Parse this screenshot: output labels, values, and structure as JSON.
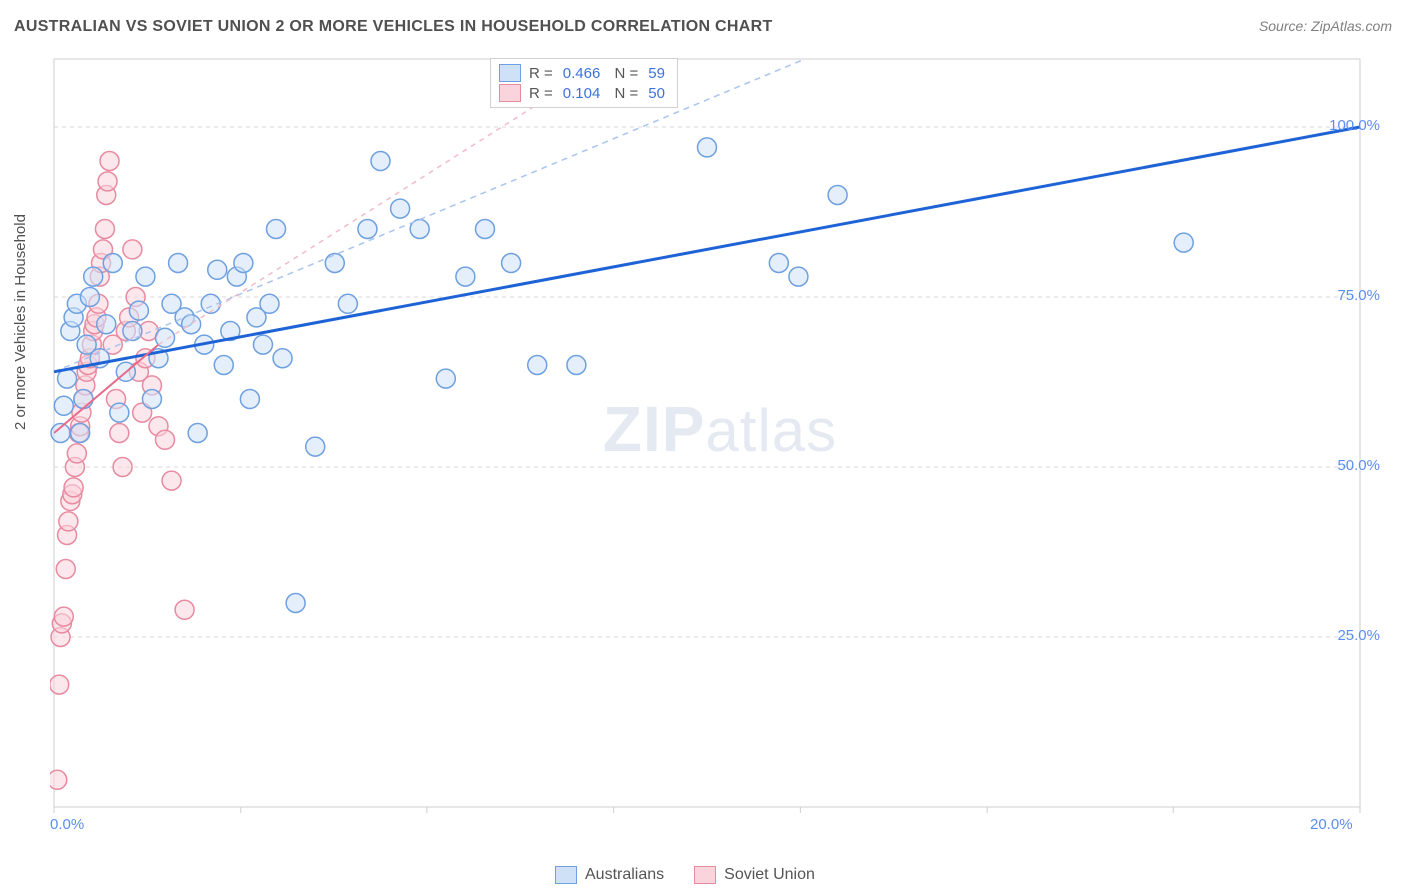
{
  "title": "AUSTRALIAN VS SOVIET UNION 2 OR MORE VEHICLES IN HOUSEHOLD CORRELATION CHART",
  "source": "Source: ZipAtlas.com",
  "watermark_part1": "ZIP",
  "watermark_part2": "atlas",
  "yaxis_title": "2 or more Vehicles in Household",
  "chart": {
    "type": "scatter",
    "xlim": [
      0,
      20
    ],
    "ylim": [
      0,
      110
    ],
    "xtick_labels": [
      {
        "v": 0,
        "label": "0.0%"
      },
      {
        "v": 20,
        "label": "20.0%"
      }
    ],
    "ytick_labels": [
      {
        "v": 25,
        "label": "25.0%"
      },
      {
        "v": 50,
        "label": "50.0%"
      },
      {
        "v": 75,
        "label": "75.0%"
      },
      {
        "v": 100,
        "label": "100.0%"
      }
    ],
    "xgrid_minor": [
      0,
      2.86,
      5.71,
      8.57,
      11.43,
      14.29,
      17.14,
      20
    ],
    "background": "#ffffff",
    "grid_color": "#d8d8d8",
    "axis_color": "#cfcfcf",
    "tick_label_color": "#5b8def",
    "marker_radius": 9.5,
    "marker_stroke_width": 1.5,
    "series": [
      {
        "name": "Australians",
        "fill": "#cfe1f7",
        "stroke": "#6ea0e0",
        "fill_opacity": 0.55,
        "trend": {
          "x1": 0,
          "y1": 64,
          "x2": 20,
          "y2": 100,
          "color": "#1e63d6",
          "width": 3,
          "dash": "none",
          "ext": {
            "x1": 0,
            "y1": 64,
            "x2": 11.5,
            "y2": 110,
            "dash": "6,5",
            "color": "#a9c4ee",
            "width": 1.5
          }
        },
        "stats": {
          "R": "0.466",
          "N": "59"
        },
        "points": [
          [
            0.1,
            55
          ],
          [
            0.15,
            59
          ],
          [
            0.2,
            63
          ],
          [
            0.25,
            70
          ],
          [
            0.3,
            72
          ],
          [
            0.35,
            74
          ],
          [
            0.4,
            55
          ],
          [
            0.45,
            60
          ],
          [
            0.5,
            68
          ],
          [
            0.55,
            75
          ],
          [
            0.6,
            78
          ],
          [
            0.7,
            66
          ],
          [
            0.8,
            71
          ],
          [
            0.9,
            80
          ],
          [
            1.0,
            58
          ],
          [
            1.1,
            64
          ],
          [
            1.2,
            70
          ],
          [
            1.3,
            73
          ],
          [
            1.4,
            78
          ],
          [
            1.5,
            60
          ],
          [
            1.6,
            66
          ],
          [
            1.7,
            69
          ],
          [
            1.8,
            74
          ],
          [
            1.9,
            80
          ],
          [
            2.0,
            72
          ],
          [
            2.1,
            71
          ],
          [
            2.2,
            55
          ],
          [
            2.3,
            68
          ],
          [
            2.4,
            74
          ],
          [
            2.5,
            79
          ],
          [
            2.6,
            65
          ],
          [
            2.7,
            70
          ],
          [
            2.8,
            78
          ],
          [
            2.9,
            80
          ],
          [
            3.0,
            60
          ],
          [
            3.1,
            72
          ],
          [
            3.2,
            68
          ],
          [
            3.3,
            74
          ],
          [
            3.4,
            85
          ],
          [
            3.5,
            66
          ],
          [
            3.7,
            30
          ],
          [
            4.0,
            53
          ],
          [
            4.3,
            80
          ],
          [
            4.5,
            74
          ],
          [
            4.8,
            85
          ],
          [
            5.0,
            95
          ],
          [
            5.3,
            88
          ],
          [
            5.6,
            85
          ],
          [
            6.0,
            63
          ],
          [
            6.3,
            78
          ],
          [
            6.6,
            85
          ],
          [
            7.0,
            80
          ],
          [
            7.4,
            65
          ],
          [
            8.0,
            65
          ],
          [
            10.0,
            97
          ],
          [
            11.1,
            80
          ],
          [
            11.4,
            78
          ],
          [
            12.0,
            90
          ],
          [
            17.3,
            83
          ]
        ]
      },
      {
        "name": "Soviet Union",
        "fill": "#f9d4dc",
        "stroke": "#e88aa0",
        "fill_opacity": 0.55,
        "trend": {
          "x1": 0,
          "y1": 55,
          "x2": 1.6,
          "y2": 68,
          "color": "#e86a8a",
          "width": 2,
          "dash": "none",
          "ext": {
            "x1": 1.6,
            "y1": 68,
            "x2": 8.5,
            "y2": 110,
            "dash": "5,5",
            "color": "#f4bcc9",
            "width": 1.5
          }
        },
        "stats": {
          "R": "0.104",
          "N": "50"
        },
        "points": [
          [
            0.05,
            4
          ],
          [
            0.08,
            18
          ],
          [
            0.1,
            25
          ],
          [
            0.12,
            27
          ],
          [
            0.15,
            28
          ],
          [
            0.18,
            35
          ],
          [
            0.2,
            40
          ],
          [
            0.22,
            42
          ],
          [
            0.25,
            45
          ],
          [
            0.28,
            46
          ],
          [
            0.3,
            47
          ],
          [
            0.32,
            50
          ],
          [
            0.35,
            52
          ],
          [
            0.38,
            55
          ],
          [
            0.4,
            56
          ],
          [
            0.42,
            58
          ],
          [
            0.45,
            60
          ],
          [
            0.48,
            62
          ],
          [
            0.5,
            64
          ],
          [
            0.52,
            65
          ],
          [
            0.55,
            66
          ],
          [
            0.58,
            68
          ],
          [
            0.6,
            70
          ],
          [
            0.62,
            71
          ],
          [
            0.65,
            72
          ],
          [
            0.68,
            74
          ],
          [
            0.7,
            78
          ],
          [
            0.72,
            80
          ],
          [
            0.75,
            82
          ],
          [
            0.78,
            85
          ],
          [
            0.8,
            90
          ],
          [
            0.82,
            92
          ],
          [
            0.85,
            95
          ],
          [
            0.9,
            68
          ],
          [
            0.95,
            60
          ],
          [
            1.0,
            55
          ],
          [
            1.05,
            50
          ],
          [
            1.1,
            70
          ],
          [
            1.15,
            72
          ],
          [
            1.2,
            82
          ],
          [
            1.25,
            75
          ],
          [
            1.3,
            64
          ],
          [
            1.35,
            58
          ],
          [
            1.4,
            66
          ],
          [
            1.45,
            70
          ],
          [
            1.5,
            62
          ],
          [
            1.6,
            56
          ],
          [
            1.7,
            54
          ],
          [
            1.8,
            48
          ],
          [
            2.0,
            29
          ]
        ]
      }
    ]
  },
  "bottom_legend": [
    {
      "swatch_fill": "#cfe1f7",
      "swatch_stroke": "#6ea0e0",
      "label": "Australians"
    },
    {
      "swatch_fill": "#f9d4dc",
      "swatch_stroke": "#e88aa0",
      "label": "Soviet Union"
    }
  ]
}
